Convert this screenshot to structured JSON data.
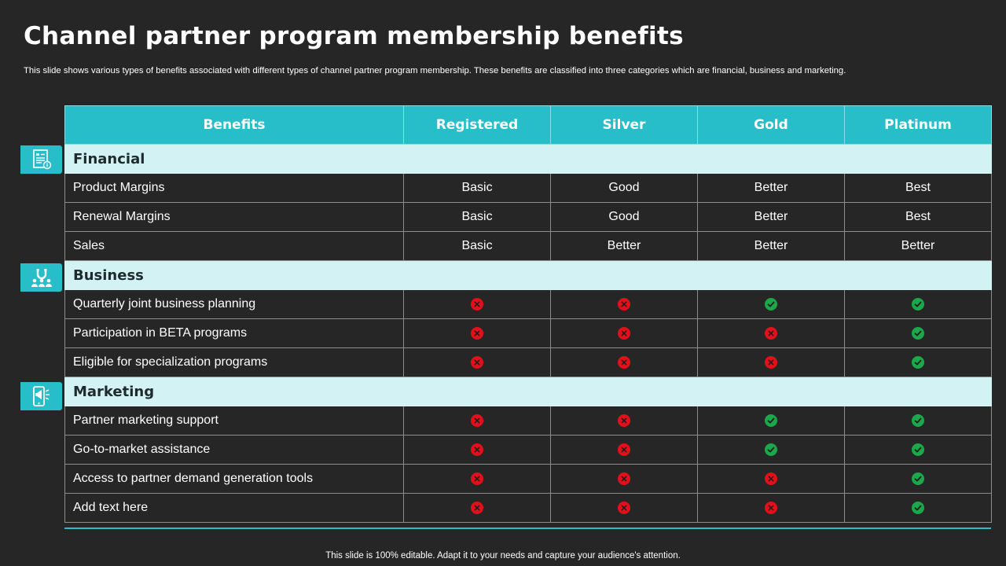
{
  "title": "Channel partner program membership benefits",
  "subtitle": "This slide shows various types of benefits associated with different types of channel partner program membership. These benefits are classified into three categories which are financial, business and marketing.",
  "footer": "This slide is 100% editable. Adapt it to your needs and capture your audience's attention.",
  "colors": {
    "accent": "#27bec9",
    "category_bg": "#d3f2f4",
    "background": "#262626",
    "yes": "#1aa84a",
    "no": "#e3101a"
  },
  "columns": [
    "Benefits",
    "Registered",
    "Silver",
    "Gold",
    "Platinum"
  ],
  "categories": [
    {
      "name": "Financial",
      "icon": "financial-report-icon",
      "rows": [
        {
          "label": "Product Margins",
          "values": [
            "Basic",
            "Good",
            "Better",
            "Best"
          ]
        },
        {
          "label": "Renewal Margins",
          "values": [
            "Basic",
            "Good",
            "Better",
            "Best"
          ]
        },
        {
          "label": "Sales",
          "values": [
            "Basic",
            "Better",
            "Better",
            "Better"
          ]
        }
      ]
    },
    {
      "name": "Business",
      "icon": "team-magnet-icon",
      "rows": [
        {
          "label": "Quarterly  joint business planning",
          "marks": [
            "no",
            "no",
            "yes",
            "yes"
          ]
        },
        {
          "label": "Participation in BETA programs",
          "marks": [
            "no",
            "no",
            "no",
            "yes"
          ]
        },
        {
          "label": "Eligible for specialization programs",
          "marks": [
            "no",
            "no",
            "no",
            "yes"
          ]
        }
      ]
    },
    {
      "name": "Marketing",
      "icon": "mobile-megaphone-icon",
      "rows": [
        {
          "label": "Partner marketing support",
          "marks": [
            "no",
            "no",
            "yes",
            "yes"
          ]
        },
        {
          "label": "Go-to-market assistance",
          "marks": [
            "no",
            "no",
            "yes",
            "yes"
          ]
        },
        {
          "label": "Access to partner demand generation tools",
          "marks": [
            "no",
            "no",
            "no",
            "yes"
          ]
        },
        {
          "label": "Add text here",
          "marks": [
            "no",
            "no",
            "no",
            "yes"
          ]
        }
      ]
    }
  ]
}
